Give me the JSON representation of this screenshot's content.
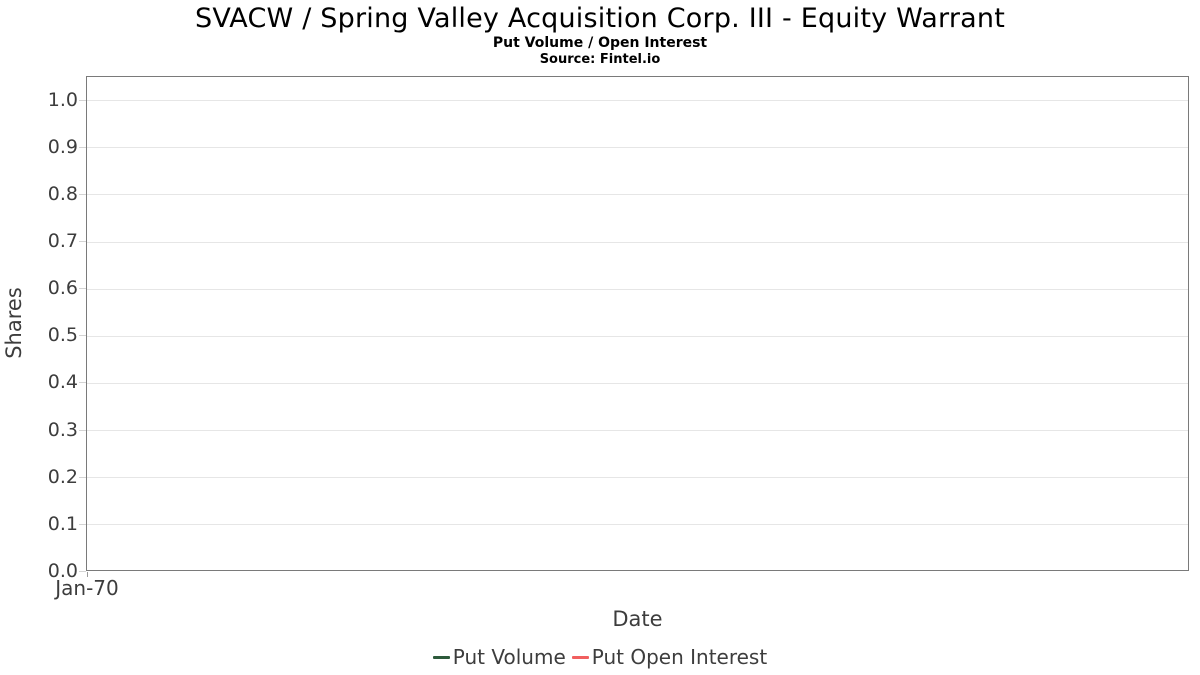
{
  "chart_data": {
    "type": "line",
    "title": "SVACW / Spring Valley Acquisition Corp. III - Equity Warrant",
    "subtitle": "Put Volume / Open Interest",
    "source": "Source: Fintel.io",
    "xlabel": "Date",
    "ylabel": "Shares",
    "x_tick_labels": [
      "Jan-70"
    ],
    "x_tick_fractions": [
      0.0
    ],
    "y_tick_labels": [
      "0.0",
      "0.1",
      "0.2",
      "0.3",
      "0.4",
      "0.5",
      "0.6",
      "0.7",
      "0.8",
      "0.9",
      "1.0"
    ],
    "ylim": [
      0,
      1.05
    ],
    "grid": "horizontal",
    "legend_position": "bottom",
    "series": [
      {
        "name": "Put Volume",
        "color": "#2d5a3b",
        "x": [],
        "values": []
      },
      {
        "name": "Put Open Interest",
        "color": "#f15f5f",
        "x": [],
        "values": []
      }
    ],
    "colors": {
      "axis_border": "#7a7a7a",
      "gridline": "#e6e6e6",
      "tick_text": "#3d3d3d",
      "title_text": "#000000"
    },
    "notes": "Plot area is empty; no data points are drawn."
  }
}
